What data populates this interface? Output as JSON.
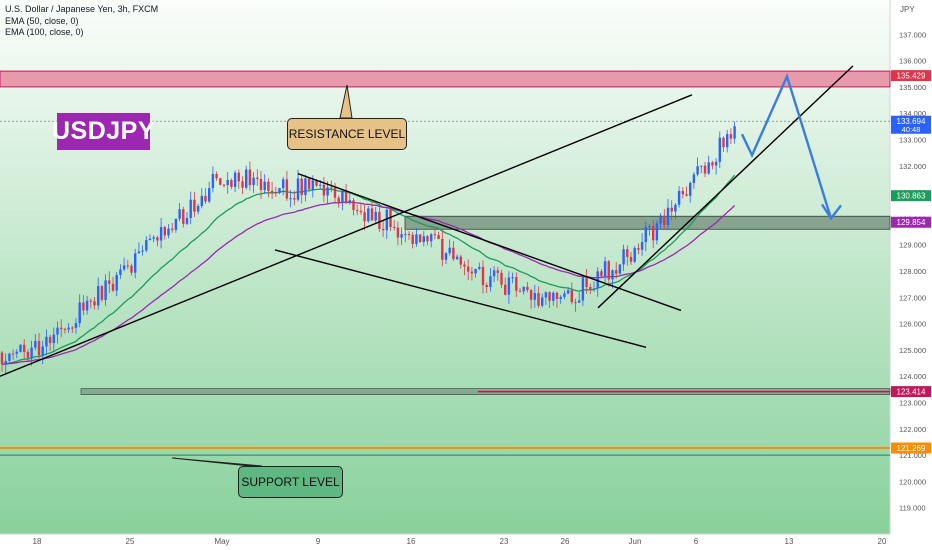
{
  "legend": {
    "symbol": "U.S. Dollar / Japanese Yen, 3h, FXCM",
    "ema50": "EMA (50, close, 0)",
    "ema100": "EMA (100, close, 0)"
  },
  "title_badge": "USDJPY",
  "resistance_label": "RESISTANCE LEVEL",
  "support_label": "SUPPORT LEVEL",
  "currency": "JPY",
  "price_labels": {
    "resistance": "135.429",
    "last": "133.694",
    "countdown": "40:48",
    "ema50": "130.863",
    "ema100": "129.854",
    "mid_level": "123.414",
    "support": "121.269"
  },
  "colors": {
    "background_top": "#fbfdfb",
    "background_bottom": "#88d19b",
    "bull_candle": "#2962ff",
    "bear_candle": "#e0344b",
    "ema50": "#1a9c5a",
    "ema100": "#9c27b0",
    "resistance_zone": "#e58aa0",
    "support_line": "#ff8c00",
    "projection": "#3b7ddd",
    "badge": "#9c27b0"
  },
  "chart_data": {
    "type": "candlestick",
    "symbol": "U.S. Dollar / Japanese Yen, 3h, FXCM",
    "ylim": [
      118.0,
      138.0
    ],
    "y_ticks": [
      119,
      120,
      121,
      122,
      123,
      124,
      125,
      126,
      127,
      128,
      129,
      130,
      131,
      132,
      133,
      134,
      135,
      136,
      137
    ],
    "x_labels": [
      "18",
      "25",
      "May",
      "9",
      "16",
      "23",
      "26",
      "Jun",
      "6",
      "13",
      "20"
    ],
    "indicators": [
      "EMA (50, close, 0)",
      "EMA (100, close, 0)"
    ],
    "close_path": [
      {
        "x": "18",
        "y": 125.0
      },
      {
        "x": "25",
        "y": 128.2
      },
      {
        "x": "May",
        "y": 131.6
      },
      {
        "x": "9",
        "y": 131.0
      },
      {
        "x": "16",
        "y": 129.5
      },
      {
        "x": "23",
        "y": 127.4
      },
      {
        "x": "26",
        "y": 126.9
      },
      {
        "x": "Jun",
        "y": 128.8
      },
      {
        "x": "6",
        "y": 131.5
      },
      {
        "x": "last",
        "y": 133.694
      }
    ],
    "levels": {
      "resistance_zone": [
        135.0,
        135.6
      ],
      "resistance": 135.429,
      "ema50": 130.863,
      "ema100": 129.854,
      "mid_level": 123.414,
      "support": 121.269,
      "support_line2": 121.0
    },
    "projection": [
      133.4,
      135.4,
      130.0
    ],
    "annotations": [
      "RESISTANCE LEVEL",
      "SUPPORT LEVEL",
      "USDJPY"
    ]
  }
}
